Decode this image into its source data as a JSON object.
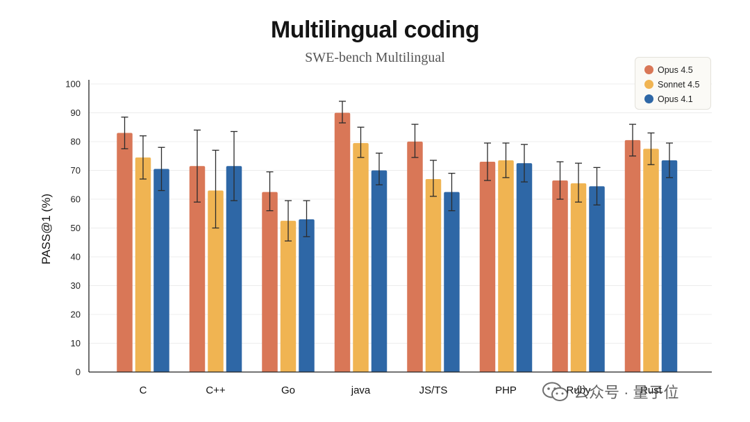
{
  "chart_data": {
    "type": "bar",
    "title": "Multilingual coding",
    "subtitle": "SWE-bench Multilingual",
    "ylabel": "PASS@1 (%)",
    "xlabel": "",
    "ylim": [
      0,
      100
    ],
    "yticks": [
      0,
      10,
      20,
      30,
      40,
      50,
      60,
      70,
      80,
      90,
      100
    ],
    "categories": [
      "C",
      "C++",
      "Go",
      "java",
      "JS/TS",
      "PHP",
      "Ruby",
      "Rust"
    ],
    "grid": true,
    "legend_position": "top-right",
    "series": [
      {
        "name": "Opus 4.5",
        "color": "#d97757",
        "values": [
          83,
          71.5,
          62.5,
          90,
          80,
          73,
          66.5,
          80.5
        ],
        "error_low": [
          77.5,
          59,
          56,
          86.5,
          74.5,
          66.5,
          60,
          75
        ],
        "error_high": [
          88.5,
          84,
          69.5,
          94,
          86,
          79.5,
          73,
          86
        ]
      },
      {
        "name": "Sonnet 4.5",
        "color": "#f0b452",
        "values": [
          74.5,
          63,
          52.5,
          79.5,
          67,
          73.5,
          65.5,
          77.5
        ],
        "error_low": [
          67,
          50,
          45.5,
          74.5,
          61,
          67.5,
          59,
          72
        ],
        "error_high": [
          82,
          77,
          59.5,
          85,
          73.5,
          79.5,
          72.5,
          83
        ]
      },
      {
        "name": "Opus 4.1",
        "color": "#2e67a6",
        "values": [
          70.5,
          71.5,
          53,
          70,
          62.5,
          72.5,
          64.5,
          73.5
        ],
        "error_low": [
          63,
          59.5,
          47,
          65,
          56,
          66,
          58,
          67.5
        ],
        "error_high": [
          78,
          83.5,
          59.5,
          76,
          69,
          79,
          71,
          79.5
        ]
      }
    ]
  },
  "watermark": {
    "text": "公众号 · 量子位",
    "icon": "wechat-icon"
  }
}
